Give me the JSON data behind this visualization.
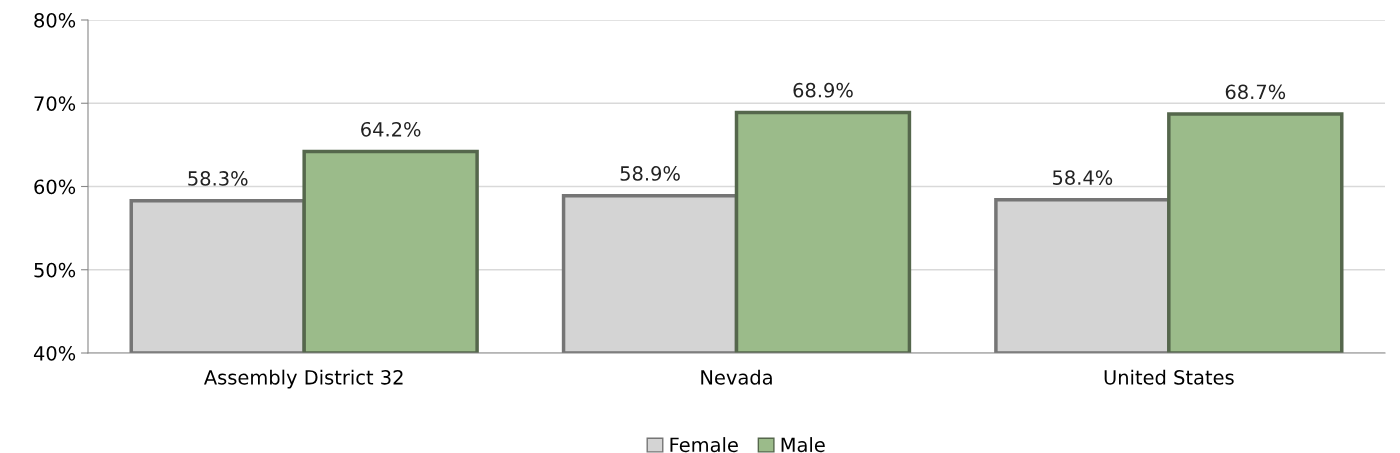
{
  "chart_data": {
    "type": "bar",
    "categories": [
      "Assembly District 32",
      "Nevada",
      "United States"
    ],
    "series": [
      {
        "name": "Female",
        "color": "#d4d4d4",
        "values": [
          58.3,
          58.9,
          58.4
        ],
        "value_labels": [
          "58.3%",
          "58.9%",
          "58.4%"
        ]
      },
      {
        "name": "Male",
        "color": "#9bbb8a",
        "values": [
          64.2,
          68.9,
          68.7
        ],
        "value_labels": [
          "64.2%",
          "68.9%",
          "68.7%"
        ]
      }
    ],
    "ylim": [
      40,
      80
    ],
    "yticks": [
      {
        "value": 40,
        "label": "40%"
      },
      {
        "value": 50,
        "label": "50%"
      },
      {
        "value": 60,
        "label": "60%"
      },
      {
        "value": 70,
        "label": "70%"
      },
      {
        "value": 80,
        "label": "80%"
      }
    ],
    "grid": "y",
    "legend": "bottom"
  }
}
